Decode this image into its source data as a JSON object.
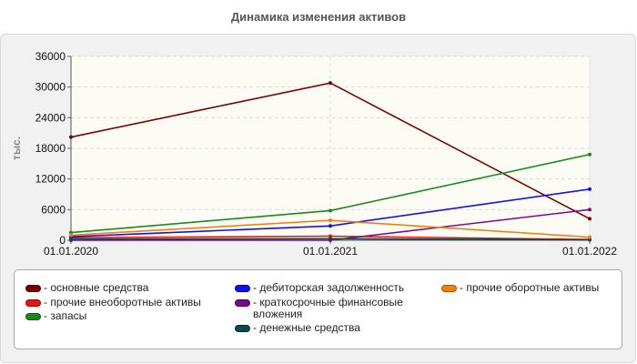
{
  "chart_data": {
    "type": "line",
    "title": "Динамика изменения активов",
    "ylabel": "тыс.",
    "xlabel": "",
    "categories": [
      "01.01.2020",
      "01.01.2021",
      "01.01.2022"
    ],
    "ylim": [
      0,
      36000
    ],
    "yticks": [
      "0",
      "6000",
      "12000",
      "18000",
      "24000",
      "30000",
      "36000"
    ],
    "grid": true,
    "legend_position": "bottom",
    "series": [
      {
        "name": "основные средства",
        "color": "#7a0000",
        "values": [
          20200,
          30800,
          4200
        ]
      },
      {
        "name": "прочие внеоборотные активы",
        "color": "#ee1111",
        "values": [
          500,
          800,
          150
        ]
      },
      {
        "name": "запасы",
        "color": "#1a8a1a",
        "values": [
          1500,
          5800,
          16800
        ]
      },
      {
        "name": "дебиторская задолженность",
        "color": "#1111ee",
        "values": [
          700,
          2800,
          10000
        ]
      },
      {
        "name": "краткосрочные финансовые вложения",
        "color": "#7a0a8a",
        "values": [
          0,
          0,
          6000
        ]
      },
      {
        "name": "денежные средства",
        "color": "#0d4a4a",
        "values": [
          200,
          300,
          100
        ]
      },
      {
        "name": "прочие оборотные активы",
        "color": "#f08010",
        "values": [
          1000,
          3900,
          600
        ]
      }
    ]
  },
  "legend_labels": [
    "- основные средства",
    "- прочие внеоборотные активы",
    "- запасы",
    "- дебиторская задолженность",
    "- краткосрочные финансовые вложения",
    "- денежные средства",
    "- прочие оборотные активы"
  ]
}
